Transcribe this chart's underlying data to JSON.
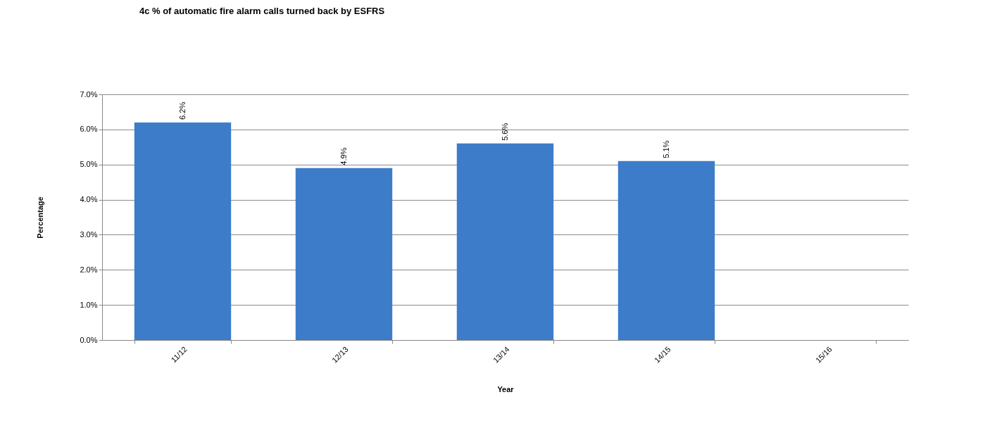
{
  "chart_data": {
    "type": "bar",
    "title": "4c   % of automatic fire alarm calls turned back by ESFRS",
    "xlabel": "Year",
    "ylabel": "Percentage",
    "categories": [
      "11/12",
      "12/13",
      "13/14",
      "14/15",
      "15/16"
    ],
    "values": [
      6.2,
      4.9,
      5.6,
      5.1,
      null
    ],
    "value_labels": [
      "6.2%",
      "4.9%",
      "5.6%",
      "5.1%",
      null
    ],
    "color": "#3d7cc9",
    "ylim": [
      0,
      7
    ],
    "yticks": [
      {
        "value": 0,
        "label": "0.0%"
      },
      {
        "value": 1,
        "label": "1.0%"
      },
      {
        "value": 2,
        "label": "2.0%"
      },
      {
        "value": 3,
        "label": "3.0%"
      },
      {
        "value": 4,
        "label": "4.0%"
      },
      {
        "value": 5,
        "label": "5.0%"
      },
      {
        "value": 6,
        "label": "6.0%"
      },
      {
        "value": 7,
        "label": "7.0%"
      }
    ],
    "grid": true
  }
}
